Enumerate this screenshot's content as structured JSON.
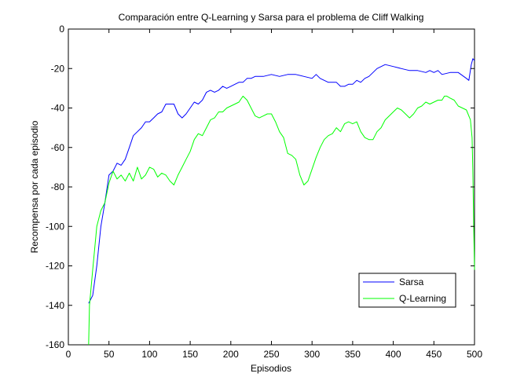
{
  "chart_data": {
    "type": "line",
    "title": "Comparación entre Q-Learning y Sarsa para el problema de Cliff Walking",
    "xlabel": "Episodios",
    "ylabel": "Recompensa por cada episodio",
    "xlim": [
      0,
      500
    ],
    "ylim": [
      -160,
      0
    ],
    "xticks": [
      "0",
      "50",
      "100",
      "150",
      "200",
      "250",
      "300",
      "350",
      "400",
      "450",
      "500"
    ],
    "yticks": [
      "-160",
      "-140",
      "-120",
      "-100",
      "-80",
      "-60",
      "-40",
      "-20",
      "0"
    ],
    "grid": false,
    "legend_position": "bottom-right",
    "series": [
      {
        "name": "Sarsa",
        "color": "#0000ff",
        "points": [
          [
            25,
            -139
          ],
          [
            30,
            -135
          ],
          [
            35,
            -120
          ],
          [
            40,
            -100
          ],
          [
            45,
            -88
          ],
          [
            50,
            -74
          ],
          [
            55,
            -72
          ],
          [
            60,
            -68
          ],
          [
            65,
            -69
          ],
          [
            70,
            -66
          ],
          [
            75,
            -60
          ],
          [
            80,
            -54
          ],
          [
            85,
            -52
          ],
          [
            90,
            -50
          ],
          [
            95,
            -47
          ],
          [
            100,
            -47
          ],
          [
            105,
            -45
          ],
          [
            110,
            -43
          ],
          [
            115,
            -42
          ],
          [
            120,
            -38
          ],
          [
            125,
            -38
          ],
          [
            130,
            -38
          ],
          [
            135,
            -43
          ],
          [
            140,
            -45
          ],
          [
            145,
            -43
          ],
          [
            150,
            -40
          ],
          [
            155,
            -37
          ],
          [
            160,
            -38
          ],
          [
            165,
            -36
          ],
          [
            170,
            -32
          ],
          [
            175,
            -31
          ],
          [
            180,
            -32
          ],
          [
            185,
            -31
          ],
          [
            190,
            -29
          ],
          [
            195,
            -30
          ],
          [
            200,
            -29
          ],
          [
            205,
            -28
          ],
          [
            210,
            -27
          ],
          [
            215,
            -27
          ],
          [
            220,
            -25
          ],
          [
            225,
            -25
          ],
          [
            230,
            -24
          ],
          [
            240,
            -24
          ],
          [
            250,
            -23
          ],
          [
            260,
            -24
          ],
          [
            270,
            -23
          ],
          [
            280,
            -23
          ],
          [
            290,
            -24
          ],
          [
            300,
            -25
          ],
          [
            305,
            -23
          ],
          [
            310,
            -25
          ],
          [
            320,
            -27
          ],
          [
            330,
            -27
          ],
          [
            335,
            -29
          ],
          [
            340,
            -29
          ],
          [
            345,
            -28
          ],
          [
            350,
            -28
          ],
          [
            355,
            -26
          ],
          [
            360,
            -27
          ],
          [
            365,
            -25
          ],
          [
            370,
            -24
          ],
          [
            375,
            -22
          ],
          [
            380,
            -20
          ],
          [
            390,
            -18
          ],
          [
            400,
            -19
          ],
          [
            410,
            -20
          ],
          [
            420,
            -21
          ],
          [
            430,
            -21
          ],
          [
            440,
            -22
          ],
          [
            445,
            -21
          ],
          [
            450,
            -22
          ],
          [
            455,
            -21
          ],
          [
            460,
            -23
          ],
          [
            470,
            -22
          ],
          [
            480,
            -22
          ],
          [
            490,
            -25
          ],
          [
            493,
            -26
          ],
          [
            496,
            -18
          ],
          [
            498,
            -15
          ],
          [
            500,
            -16
          ]
        ]
      },
      {
        "name": "Q-Learning",
        "color": "#00ff00",
        "points": [
          [
            25,
            -160
          ],
          [
            26,
            -140
          ],
          [
            30,
            -122
          ],
          [
            35,
            -100
          ],
          [
            40,
            -92
          ],
          [
            45,
            -88
          ],
          [
            50,
            -78
          ],
          [
            55,
            -72
          ],
          [
            60,
            -76
          ],
          [
            65,
            -74
          ],
          [
            70,
            -77
          ],
          [
            75,
            -73
          ],
          [
            80,
            -77
          ],
          [
            85,
            -70
          ],
          [
            90,
            -76
          ],
          [
            95,
            -74
          ],
          [
            100,
            -70
          ],
          [
            105,
            -71
          ],
          [
            110,
            -75
          ],
          [
            115,
            -73
          ],
          [
            120,
            -74
          ],
          [
            125,
            -77
          ],
          [
            130,
            -79
          ],
          [
            135,
            -74
          ],
          [
            140,
            -70
          ],
          [
            145,
            -66
          ],
          [
            150,
            -62
          ],
          [
            155,
            -56
          ],
          [
            160,
            -53
          ],
          [
            165,
            -54
          ],
          [
            170,
            -50
          ],
          [
            175,
            -46
          ],
          [
            180,
            -45
          ],
          [
            185,
            -42
          ],
          [
            190,
            -42
          ],
          [
            195,
            -40
          ],
          [
            200,
            -39
          ],
          [
            205,
            -38
          ],
          [
            210,
            -37
          ],
          [
            215,
            -34
          ],
          [
            220,
            -36
          ],
          [
            225,
            -40
          ],
          [
            230,
            -44
          ],
          [
            235,
            -45
          ],
          [
            240,
            -44
          ],
          [
            245,
            -43
          ],
          [
            250,
            -43
          ],
          [
            255,
            -47
          ],
          [
            260,
            -52
          ],
          [
            265,
            -55
          ],
          [
            270,
            -63
          ],
          [
            275,
            -64
          ],
          [
            280,
            -66
          ],
          [
            285,
            -74
          ],
          [
            290,
            -79
          ],
          [
            295,
            -77
          ],
          [
            300,
            -71
          ],
          [
            305,
            -65
          ],
          [
            310,
            -60
          ],
          [
            315,
            -56
          ],
          [
            320,
            -54
          ],
          [
            325,
            -53
          ],
          [
            330,
            -50
          ],
          [
            335,
            -52
          ],
          [
            340,
            -48
          ],
          [
            345,
            -47
          ],
          [
            350,
            -48
          ],
          [
            355,
            -47
          ],
          [
            360,
            -52
          ],
          [
            365,
            -55
          ],
          [
            370,
            -56
          ],
          [
            375,
            -56
          ],
          [
            380,
            -52
          ],
          [
            385,
            -50
          ],
          [
            390,
            -46
          ],
          [
            395,
            -44
          ],
          [
            400,
            -42
          ],
          [
            405,
            -40
          ],
          [
            410,
            -41
          ],
          [
            415,
            -43
          ],
          [
            420,
            -45
          ],
          [
            425,
            -43
          ],
          [
            430,
            -40
          ],
          [
            435,
            -39
          ],
          [
            440,
            -37
          ],
          [
            445,
            -38
          ],
          [
            450,
            -37
          ],
          [
            455,
            -36
          ],
          [
            460,
            -36
          ],
          [
            463,
            -34
          ],
          [
            466,
            -34
          ],
          [
            470,
            -35
          ],
          [
            475,
            -36
          ],
          [
            480,
            -39
          ],
          [
            485,
            -40
          ],
          [
            490,
            -41
          ],
          [
            495,
            -46
          ],
          [
            497,
            -55
          ],
          [
            498,
            -72
          ],
          [
            499,
            -100
          ],
          [
            500,
            -122
          ]
        ]
      }
    ]
  }
}
